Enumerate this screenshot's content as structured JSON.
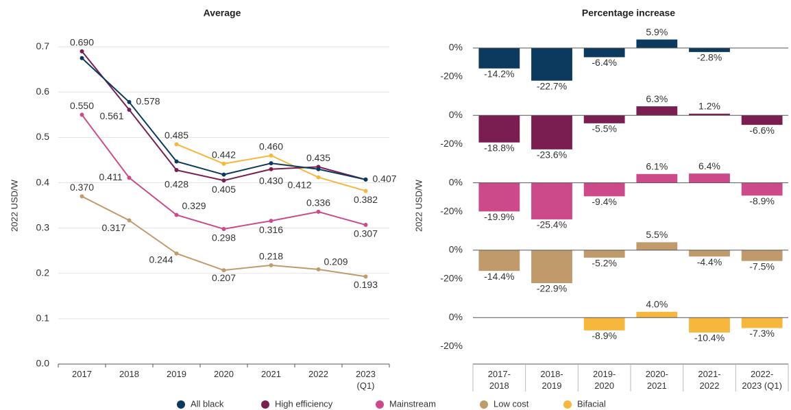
{
  "chart_data": [
    {
      "type": "line",
      "title": "Average",
      "ylabel": "2022 USD/W",
      "categories": [
        "2017",
        "2018",
        "2019",
        "2020",
        "2021",
        "2022",
        "2023 (Q1)"
      ],
      "ylim": [
        0,
        0.72
      ],
      "yticks": [
        {
          "value": 0,
          "label": "0.0"
        },
        0.1,
        0.2,
        0.3,
        0.4,
        0.5,
        0.6,
        0.7
      ],
      "grid": true,
      "legend": "bottom",
      "series": [
        {
          "name": "All black",
          "color": "#0b3a5e",
          "values": [
            0.675,
            0.578,
            0.447,
            0.418,
            0.443,
            0.43,
            0.407
          ],
          "value_labels": [
            null,
            "0.578",
            null,
            null,
            null,
            null,
            null
          ]
        },
        {
          "name": "High efficiency",
          "color": "#7a1e52",
          "values": [
            0.69,
            0.561,
            0.428,
            0.405,
            0.43,
            0.435,
            0.407
          ],
          "value_labels": [
            "0.690",
            "0.561",
            "0.428",
            "0.405",
            "0.430",
            "0.435",
            "0.407"
          ]
        },
        {
          "name": "Mainstream",
          "color": "#cc4a8a",
          "values": [
            0.55,
            0.411,
            0.329,
            0.298,
            0.316,
            0.336,
            0.307
          ],
          "value_labels": [
            "0.550",
            "0.411",
            "0.329",
            "0.298",
            "0.316",
            "0.336",
            "0.307"
          ]
        },
        {
          "name": "Low cost",
          "color": "#c19a6b",
          "values": [
            0.37,
            0.317,
            0.244,
            0.207,
            0.218,
            0.209,
            0.193
          ],
          "value_labels": [
            "0.370",
            "0.317",
            "0.244",
            "0.207",
            "0.218",
            "0.209",
            "0.193"
          ]
        },
        {
          "name": "Bifacial",
          "color": "#f6b73c",
          "values": [
            null,
            null,
            0.485,
            0.442,
            0.46,
            0.412,
            0.382
          ],
          "value_labels": [
            null,
            null,
            "0.485",
            "0.442",
            "0.460",
            "0.412",
            "0.382"
          ]
        }
      ]
    },
    {
      "type": "bar",
      "title": "Percentage increase",
      "ylabel": "2022 USD/W",
      "categories": [
        "2017-2018",
        "2018-2019",
        "2019-2020",
        "2020-2021",
        "2021-2022",
        "2022-2023 (Q1)"
      ],
      "ylim": [
        -30,
        12
      ],
      "yticks": [
        {
          "value": 0,
          "label": "0%"
        },
        {
          "value": -20,
          "label": "-20%"
        }
      ],
      "series": [
        {
          "color": "#0b3a5e",
          "values": [
            -14.2,
            -22.7,
            -6.4,
            5.9,
            -2.8,
            null
          ],
          "value_labels": [
            "-14.2%",
            "-22.7%",
            "-6.4%",
            "5.9%",
            "-2.8%",
            null
          ]
        },
        {
          "color": "#7a1e52",
          "values": [
            -18.8,
            -23.6,
            -5.5,
            6.3,
            1.2,
            -6.6
          ],
          "value_labels": [
            "-18.8%",
            "-23.6%",
            "-5.5%",
            "6.3%",
            "1.2%",
            "-6.6%"
          ]
        },
        {
          "color": "#cc4a8a",
          "values": [
            -19.9,
            -25.4,
            -9.4,
            6.1,
            6.4,
            -8.9
          ],
          "value_labels": [
            "-19.9%",
            "-25.4%",
            "-9.4%",
            "6.1%",
            "6.4%",
            "-8.9%"
          ]
        },
        {
          "color": "#c19a6b",
          "values": [
            -14.4,
            -22.9,
            -5.2,
            5.5,
            -4.4,
            -7.5
          ],
          "value_labels": [
            "-14.4%",
            "-22.9%",
            "-5.2%",
            "5.5%",
            "-4.4%",
            "-7.5%"
          ]
        },
        {
          "color": "#f6b73c",
          "values": [
            null,
            null,
            -8.9,
            4.0,
            -10.4,
            -7.3
          ],
          "value_labels": [
            null,
            null,
            "-8.9%",
            "4.0%",
            "-10.4%",
            "-7.3%"
          ]
        }
      ]
    }
  ]
}
